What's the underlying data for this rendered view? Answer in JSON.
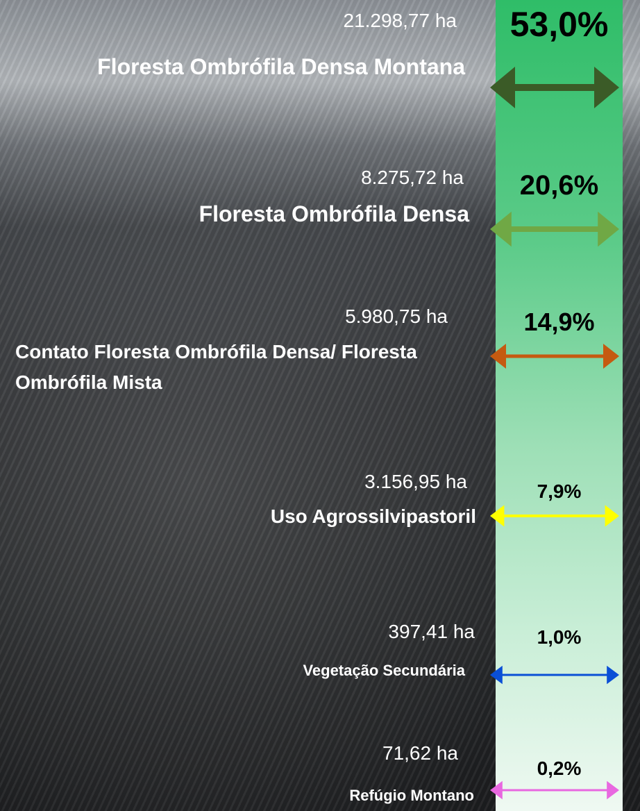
{
  "items": [
    {
      "area": "21.298,77 ha",
      "label": "Floresta Ombrófila Densa Montana",
      "percent": "53,0%",
      "arrow_color": "#3b5b27"
    },
    {
      "area": "8.275,72 ha",
      "label": "Floresta Ombrófila Densa",
      "percent": "20,6%",
      "arrow_color": "#70a845"
    },
    {
      "area": "5.980,75 ha",
      "label": "Contato Floresta Ombrófila Densa/ Floresta Ombrófila Mista",
      "percent": "14,9%",
      "arrow_color": "#c55a11"
    },
    {
      "area": "3.156,95 ha",
      "label": "Uso Agrossilvipastoril",
      "percent": "7,9%",
      "arrow_color": "#ffff00"
    },
    {
      "area": "397,41 ha",
      "label": "Vegetação Secundária",
      "percent": "1,0%",
      "arrow_color": "#0a4fd6"
    },
    {
      "area": "71,62 ha",
      "label": "Refúgio Montano",
      "percent": "0,2%",
      "arrow_color": "#e868e0"
    }
  ]
}
